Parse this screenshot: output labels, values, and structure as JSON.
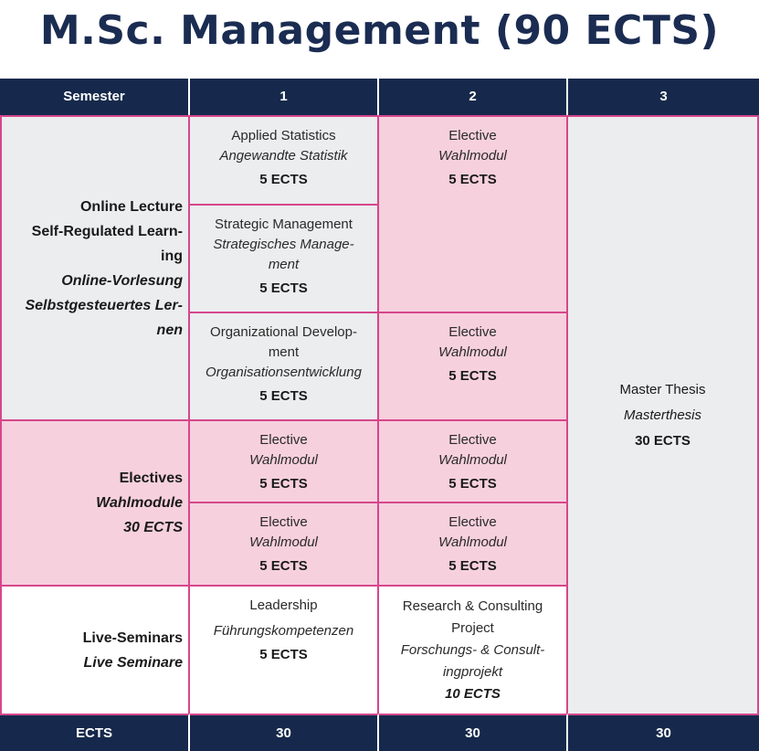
{
  "title": "M.Sc. Management (90 ECTS)",
  "header": {
    "semester": "Semester",
    "s1": "1",
    "s2": "2",
    "s3": "3"
  },
  "rows": {
    "online": {
      "l1": "Online Lecture",
      "l2": "Self-Regulated Learn-",
      "l3": "ing",
      "l4": "Online-Vorlesung",
      "l5": "Selbstgesteuertes Ler-",
      "l6": "nen"
    },
    "electives": {
      "l1": "Electives",
      "l2": "Wahlmodule",
      "l3": "30 ECTS"
    },
    "live": {
      "l1": "Live-Seminars",
      "l2": "Live Seminare"
    }
  },
  "modules": {
    "applied_stats": {
      "en": "Applied Statistics",
      "de": "Angewandte Statistik",
      "ects": "5 ECTS"
    },
    "strategic": {
      "en": "Strategic Management",
      "de1": "Strategisches Manage-",
      "de2": "ment",
      "ects": "5 ECTS"
    },
    "org_dev": {
      "en1": "Organizational Develop-",
      "en2": "ment",
      "de": "Organisationsentwicklung",
      "ects": "5  ECTS"
    },
    "elective": {
      "en": "Elective",
      "de": "Wahlmodul",
      "ects": "5 ECTS"
    },
    "leadership": {
      "en": "Leadership",
      "de": "Führungskompetenzen",
      "ects": "5 ECTS"
    },
    "research": {
      "en1": "Research & Consulting",
      "en2": "Project",
      "de1": "Forschungs- & Consult-",
      "de2": "ingprojekt",
      "ects": "10 ECTS"
    },
    "thesis": {
      "en": "Master Thesis",
      "de": "Masterthesis",
      "ects": "30 ECTS"
    }
  },
  "footer": {
    "label": "ECTS",
    "s1": "30",
    "s2": "30",
    "s3": "30"
  }
}
